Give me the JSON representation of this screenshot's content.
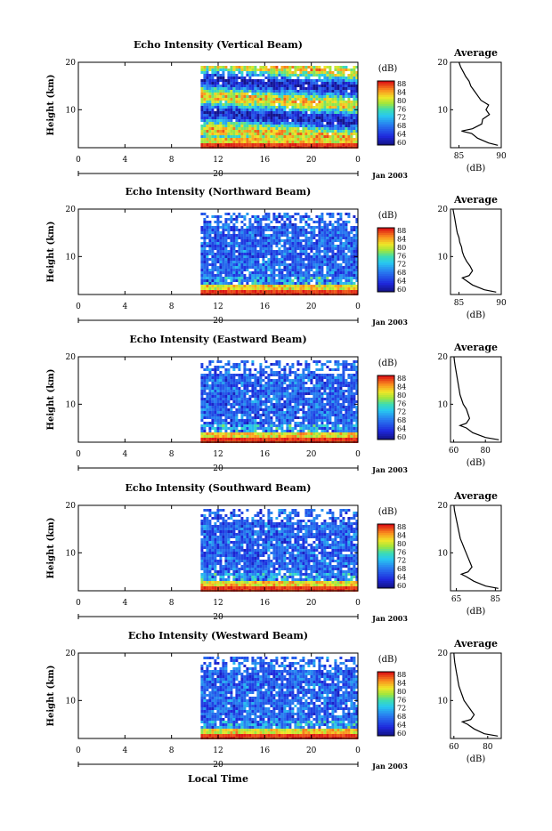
{
  "figure": {
    "month_label": "Jan 2003",
    "xlabel": "Local Time",
    "avg_title": "Average",
    "avg_xunit": "(dB)",
    "cb_unit": "(dB)",
    "colorbar_ticks": [
      "88",
      "84",
      "80",
      "76",
      "72",
      "68",
      "64",
      "60"
    ],
    "date_label": "20",
    "ylabel": "Height (km)"
  },
  "chart_data": [
    {
      "type": "heatmap",
      "title": "Echo Intensity (Vertical Beam)",
      "xlabel": "Local Time",
      "ylabel": "Height (km)",
      "xticks": [
        "0",
        "4",
        "8",
        "12",
        "16",
        "20",
        "0"
      ],
      "yticks": [
        "20",
        "10"
      ],
      "xlim": [
        0,
        24
      ],
      "ylim": [
        2,
        20
      ],
      "colorbar": {
        "label": "(dB)",
        "range": [
          60,
          88
        ]
      },
      "data_start_hour": 10.5,
      "average_profile": {
        "title": "Average",
        "xlabel": "(dB)",
        "xticks": [
          "85",
          "90"
        ],
        "xlim": [
          84,
          90
        ],
        "heights": [
          2.5,
          3,
          4,
          5,
          5.5,
          6,
          7,
          8,
          9,
          10,
          11,
          12,
          13,
          14,
          15,
          16,
          17,
          18,
          19,
          20
        ],
        "values": [
          89.6,
          88.5,
          87.2,
          86.5,
          85.3,
          86.6,
          87.7,
          87.8,
          88.6,
          88.2,
          88.5,
          87.6,
          87.2,
          86.8,
          86.4,
          86.2,
          85.8,
          85.5,
          85.2,
          85.0
        ]
      }
    },
    {
      "type": "heatmap",
      "title": "Echo Intensity (Northward Beam)",
      "xlabel": "Local Time",
      "ylabel": "Height (km)",
      "xticks": [
        "0",
        "4",
        "8",
        "12",
        "16",
        "20",
        "0"
      ],
      "yticks": [
        "20",
        "10"
      ],
      "xlim": [
        0,
        24
      ],
      "ylim": [
        2,
        20
      ],
      "colorbar": {
        "label": "(dB)",
        "range": [
          60,
          88
        ]
      },
      "data_start_hour": 10.5,
      "average_profile": {
        "title": "Average",
        "xlabel": "(dB)",
        "xticks": [
          "85",
          "90"
        ],
        "xlim": [
          84,
          90
        ],
        "heights": [
          2.5,
          3,
          4,
          5,
          5.5,
          6,
          7,
          8,
          9,
          10,
          11,
          12,
          13,
          14,
          15,
          16,
          17,
          18,
          19,
          20
        ],
        "values": [
          89.4,
          88.0,
          86.6,
          85.8,
          85.4,
          86.2,
          86.6,
          86.3,
          85.9,
          85.6,
          85.4,
          85.3,
          85.1,
          85.0,
          84.8,
          84.7,
          84.6,
          84.5,
          84.4,
          84.3
        ]
      }
    },
    {
      "type": "heatmap",
      "title": "Echo Intensity (Eastward Beam)",
      "xlabel": "Local Time",
      "ylabel": "Height (km)",
      "xticks": [
        "0",
        "4",
        "8",
        "12",
        "16",
        "20",
        "0"
      ],
      "yticks": [
        "20",
        "10"
      ],
      "xlim": [
        0,
        24
      ],
      "ylim": [
        2,
        20
      ],
      "colorbar": {
        "label": "(dB)",
        "range": [
          60,
          88
        ]
      },
      "data_start_hour": 10.5,
      "average_profile": {
        "title": "Average",
        "xlabel": "(dB)",
        "xticks": [
          "60",
          "80"
        ],
        "xlim": [
          58,
          90
        ],
        "heights": [
          2.5,
          3,
          4,
          5,
          5.5,
          6,
          7,
          8,
          9,
          10,
          11,
          12,
          13,
          14,
          15,
          16,
          17,
          18,
          19,
          20
        ],
        "values": [
          88.5,
          80.0,
          72.0,
          68.0,
          64.0,
          68.0,
          70.0,
          69.0,
          68.0,
          66.0,
          65.0,
          64.0,
          63.5,
          63.0,
          62.5,
          62.0,
          61.5,
          61.0,
          60.5,
          60.2
        ]
      }
    },
    {
      "type": "heatmap",
      "title": "Echo Intensity (Southward Beam)",
      "xlabel": "Local Time",
      "ylabel": "Height (km)",
      "xticks": [
        "0",
        "4",
        "8",
        "12",
        "16",
        "20",
        "0"
      ],
      "yticks": [
        "20",
        "10"
      ],
      "xlim": [
        0,
        24
      ],
      "ylim": [
        2,
        20
      ],
      "colorbar": {
        "label": "(dB)",
        "range": [
          60,
          88
        ]
      },
      "data_start_hour": 10.5,
      "average_profile": {
        "title": "Average",
        "xlabel": "(dB)",
        "xticks": [
          "65",
          "85"
        ],
        "xlim": [
          62,
          88
        ],
        "heights": [
          2.5,
          3,
          4,
          5,
          5.5,
          6,
          7,
          8,
          9,
          10,
          11,
          12,
          13,
          14,
          15,
          16,
          17,
          18,
          19,
          20
        ],
        "values": [
          86.5,
          80.0,
          74.0,
          70.0,
          67.5,
          71.0,
          73.0,
          72.0,
          71.0,
          70.0,
          69.0,
          68.0,
          67.0,
          66.5,
          66.0,
          65.5,
          65.0,
          64.5,
          64.0,
          63.8
        ]
      }
    },
    {
      "type": "heatmap",
      "title": "Echo Intensity (Westward Beam)",
      "xlabel": "Local Time",
      "ylabel": "Height (km)",
      "xticks": [
        "0",
        "4",
        "8",
        "12",
        "16",
        "20",
        "0"
      ],
      "yticks": [
        "20",
        "10"
      ],
      "xlim": [
        0,
        24
      ],
      "ylim": [
        2,
        20
      ],
      "colorbar": {
        "label": "(dB)",
        "range": [
          60,
          88
        ]
      },
      "data_start_hour": 10.5,
      "average_profile": {
        "title": "Average",
        "xlabel": "(dB)",
        "xticks": [
          "60",
          "80"
        ],
        "xlim": [
          58,
          88
        ],
        "heights": [
          2.5,
          3,
          4,
          5,
          5.5,
          6,
          7,
          8,
          9,
          10,
          11,
          12,
          13,
          14,
          15,
          16,
          17,
          18,
          19,
          20
        ],
        "values": [
          86.0,
          78.0,
          72.0,
          68.0,
          65.0,
          70.0,
          72.0,
          70.0,
          68.0,
          66.0,
          65.0,
          64.0,
          63.0,
          62.5,
          62.0,
          61.5,
          61.0,
          60.5,
          60.2,
          60.0
        ]
      }
    }
  ]
}
